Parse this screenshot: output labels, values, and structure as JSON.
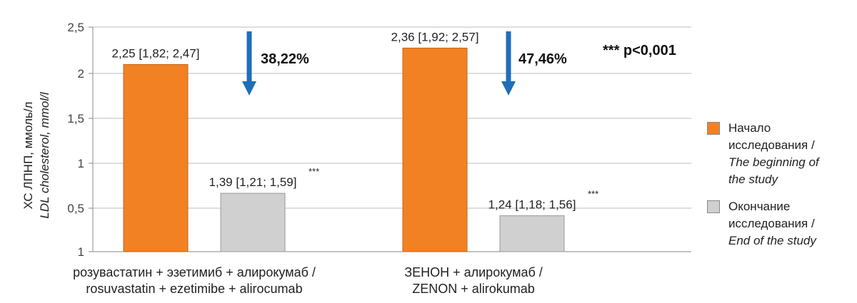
{
  "chart_data": {
    "type": "bar",
    "ylabel_ru": "ХС ЛПНП, ммоль/л",
    "ylabel_en": "LDL cholesterol, mmol/l",
    "ylim": [
      1,
      2.5
    ],
    "yticks": [
      "1",
      "1,5",
      "2",
      "2,5"
    ],
    "yticks_all": [
      {
        "value": 1,
        "label": "1"
      },
      {
        "value": 1.5,
        "label": "1,5"
      },
      {
        "value": 2,
        "label": "2"
      },
      {
        "value": 2.5,
        "label": "2,5"
      },
      {
        "value": 0.5,
        "label": "0,5"
      }
    ],
    "grid": true,
    "categories": [
      {
        "line1": "розувастатин + эзетимиб + алирокумаб /",
        "line2": "rosuvastatin + ezetimibe + alirocumab"
      },
      {
        "line1": "ЗЕНОН + алирокумаб /",
        "line2": "ZENON + alirokumab"
      }
    ],
    "series": [
      {
        "name_ru": "Начало исследования /",
        "name_en_1": "The beginning of",
        "name_en_2": "the study",
        "color": "#f28123",
        "values": [
          2.25,
          2.36
        ],
        "labels": [
          "2,25 [1,82; 2,47]",
          "2,36 [1,92; 2,57]"
        ],
        "stars": [
          "",
          ""
        ]
      },
      {
        "name_ru": "Окончание исследования /",
        "name_en_1": "End of the study",
        "name_en_2": "",
        "color": "#d0d0d0",
        "values": [
          1.39,
          1.24
        ],
        "labels": [
          "1,39 [1,21; 1,59]",
          "1,24 [1,18; 1,56]"
        ],
        "stars": [
          "***",
          "***"
        ]
      }
    ],
    "reductions": [
      "38,22%",
      "47,46%"
    ],
    "arrow_color": "#1f6fb8",
    "significance": "*** p<0,001",
    "legend_position": "right"
  }
}
